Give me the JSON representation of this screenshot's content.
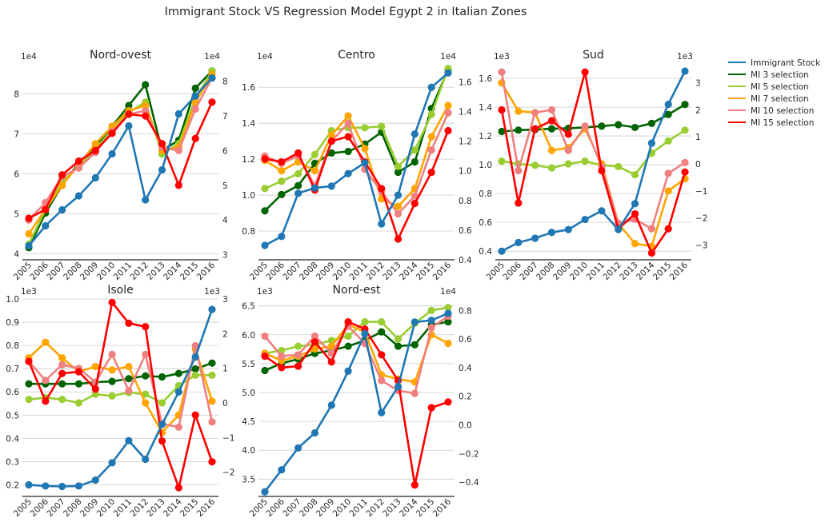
{
  "title": "Immigrant Stock VS Regression Model Egypt 2 in Italian Zones",
  "years": [
    "2005",
    "2006",
    "2007",
    "2008",
    "2009",
    "2010",
    "2011",
    "2012",
    "2013",
    "2014",
    "2015",
    "2016"
  ],
  "legend": [
    {
      "name": "Immigrant Stock",
      "color": "#1f77b4"
    },
    {
      "name": "MI 3 selection",
      "color": "#006400"
    },
    {
      "name": "MI 5 selection",
      "color": "#9acd32"
    },
    {
      "name": "MI 7 selection",
      "color": "#ffa500"
    },
    {
      "name": "MI 10 selection",
      "color": "#f08080"
    },
    {
      "name": "MI 15 selection",
      "color": "#ff0000"
    }
  ],
  "chart_data": [
    {
      "type": "line",
      "title": "Nord-ovest",
      "left_exponent": "1e4",
      "right_exponent": "1e4",
      "left_ylim": [
        3.85,
        8.75
      ],
      "left_ticks": [
        4,
        5,
        6,
        7,
        8
      ],
      "right_ylim": [
        2.85,
        8.5
      ],
      "right_ticks": [
        3,
        4,
        5,
        6,
        7,
        8
      ],
      "left_series": [
        {
          "name": "Immigrant Stock",
          "values": [
            4.2,
            4.7,
            5.1,
            5.45,
            5.9,
            6.5,
            7.2,
            5.35,
            6.1,
            7.5,
            7.95,
            8.4
          ]
        }
      ],
      "right_series": [
        {
          "name": "MI 3 selection",
          "values": [
            3.2,
            4.2,
            5.0,
            5.65,
            6.1,
            6.7,
            7.3,
            7.9,
            6.0,
            6.3,
            7.8,
            8.3
          ]
        },
        {
          "name": "MI 5 selection",
          "values": [
            3.3,
            4.3,
            5.1,
            5.55,
            6.05,
            6.6,
            7.1,
            7.4,
            5.9,
            6.2,
            7.5,
            8.3
          ]
        },
        {
          "name": "MI 7 selection",
          "values": [
            3.6,
            4.3,
            5.0,
            5.6,
            6.2,
            6.7,
            7.15,
            7.3,
            6.0,
            6.1,
            7.4,
            8.2
          ]
        },
        {
          "name": "MI 10 selection",
          "values": [
            4.0,
            4.5,
            5.25,
            5.5,
            5.95,
            6.55,
            7.05,
            7.15,
            6.1,
            6.0,
            7.2,
            8.1
          ]
        },
        {
          "name": "MI 15 selection",
          "values": [
            4.05,
            4.3,
            5.3,
            5.7,
            6.0,
            6.5,
            7.05,
            7.0,
            6.2,
            5.0,
            6.35,
            7.4
          ]
        }
      ]
    },
    {
      "type": "line",
      "title": "Centro",
      "left_exponent": "1e4",
      "right_exponent": "1e4",
      "left_ylim": [
        0.64,
        1.73
      ],
      "left_ticks": [
        0.8,
        1.0,
        1.2,
        1.4,
        1.6
      ],
      "right_ylim": [
        0.4,
        1.72
      ],
      "right_ticks": [
        0.4,
        0.6,
        0.8,
        1.0,
        1.2,
        1.4,
        1.6
      ],
      "left_series": [
        {
          "name": "Immigrant Stock",
          "values": [
            0.72,
            0.77,
            1.01,
            1.04,
            1.05,
            1.12,
            1.18,
            0.84,
            1.0,
            1.34,
            1.6,
            1.68
          ]
        }
      ],
      "right_series": [
        {
          "name": "MI 3 selection",
          "values": [
            0.73,
            0.84,
            0.9,
            1.05,
            1.12,
            1.13,
            1.18,
            1.26,
            0.99,
            1.06,
            1.42,
            1.68
          ]
        },
        {
          "name": "MI 5 selection",
          "values": [
            0.88,
            0.93,
            0.98,
            1.11,
            1.27,
            1.29,
            1.29,
            1.3,
            1.03,
            1.14,
            1.38,
            1.69
          ]
        },
        {
          "name": "MI 7 selection",
          "values": [
            1.07,
            1.0,
            1.06,
            1.0,
            1.24,
            1.37,
            1.15,
            0.81,
            0.76,
            0.88,
            1.23,
            1.44
          ]
        },
        {
          "name": "MI 10 selection",
          "values": [
            1.1,
            1.05,
            1.1,
            0.9,
            1.2,
            1.32,
            1.01,
            0.86,
            0.71,
            0.83,
            1.14,
            1.39
          ]
        },
        {
          "name": "MI 15 selection",
          "values": [
            1.08,
            1.06,
            1.12,
            0.87,
            1.2,
            1.23,
            1.06,
            0.88,
            0.54,
            0.78,
            0.99,
            1.27
          ]
        }
      ]
    },
    {
      "type": "line",
      "title": "Sud",
      "left_exponent": "1e3",
      "right_exponent": "1e3",
      "left_ylim": [
        0.34,
        1.7
      ],
      "left_ticks": [
        0.4,
        0.6,
        0.8,
        1.0,
        1.2,
        1.4,
        1.6
      ],
      "right_ylim": [
        -3.55,
        3.7
      ],
      "right_ticks": [
        -3,
        -2,
        -1,
        0,
        1,
        2,
        3
      ],
      "left_series": [
        {
          "name": "Immigrant Stock",
          "values": [
            0.4,
            0.46,
            0.49,
            0.53,
            0.55,
            0.62,
            0.68,
            0.55,
            0.73,
            1.15,
            1.42,
            1.65
          ]
        }
      ],
      "right_series": [
        {
          "name": "MI 3 selection",
          "values": [
            1.2,
            1.25,
            1.27,
            1.3,
            1.32,
            1.35,
            1.4,
            1.45,
            1.35,
            1.5,
            1.83,
            2.2
          ]
        },
        {
          "name": "MI 5 selection",
          "values": [
            0.1,
            0.0,
            -0.05,
            -0.15,
            0.0,
            0.1,
            -0.05,
            -0.1,
            -0.4,
            0.4,
            0.85,
            1.25
          ]
        },
        {
          "name": "MI 7 selection",
          "values": [
            3.0,
            1.95,
            1.9,
            0.5,
            0.6,
            1.3,
            0.0,
            -2.2,
            -2.95,
            -3.05,
            -1.0,
            -0.55
          ]
        },
        {
          "name": "MI 10 selection",
          "values": [
            3.4,
            -0.25,
            1.9,
            2.0,
            0.5,
            1.4,
            -0.1,
            -2.2,
            -2.05,
            -2.4,
            -0.35,
            0.05
          ]
        },
        {
          "name": "MI 15 selection",
          "values": [
            2.0,
            -1.45,
            1.3,
            1.6,
            1.1,
            3.4,
            -0.25,
            -2.4,
            -1.85,
            -3.3,
            -2.4,
            -0.3
          ]
        }
      ]
    },
    {
      "type": "line",
      "title": "Isole",
      "left_exponent": "1e3",
      "right_exponent": "1e3",
      "left_ylim": [
        0.15,
        1.0
      ],
      "left_ticks": [
        0.2,
        0.3,
        0.4,
        0.5,
        0.6,
        0.7,
        0.8,
        0.9,
        1.0
      ],
      "right_ylim": [
        -2.7,
        3.0
      ],
      "right_ticks": [
        -2,
        -1,
        0,
        1,
        2,
        3
      ],
      "left_series": [
        {
          "name": "Immigrant Stock",
          "values": [
            0.2,
            0.195,
            0.193,
            0.195,
            0.22,
            0.295,
            0.39,
            0.31,
            0.46,
            0.6,
            0.75,
            0.955
          ]
        }
      ],
      "right_series": [
        {
          "name": "MI 3 selection",
          "values": [
            0.55,
            0.55,
            0.55,
            0.55,
            0.6,
            0.62,
            0.7,
            0.78,
            0.75,
            0.85,
            0.98,
            1.15
          ]
        },
        {
          "name": "MI 5 selection",
          "values": [
            0.1,
            0.15,
            0.1,
            0.0,
            0.25,
            0.2,
            0.3,
            0.25,
            0.0,
            0.5,
            0.8,
            0.8
          ]
        },
        {
          "name": "MI 7 selection",
          "values": [
            1.3,
            1.75,
            1.3,
            0.9,
            1.05,
            0.95,
            1.05,
            0.0,
            -0.85,
            -0.35,
            1.55,
            0.05
          ]
        },
        {
          "name": "MI 10 selection",
          "values": [
            1.2,
            0.65,
            1.1,
            1.0,
            0.6,
            1.4,
            0.35,
            1.4,
            -0.6,
            -0.7,
            1.65,
            -0.55
          ]
        },
        {
          "name": "MI 15 selection",
          "values": [
            1.2,
            0.05,
            0.85,
            0.9,
            0.4,
            2.9,
            2.3,
            2.2,
            -1.1,
            -2.45,
            -0.35,
            -1.7
          ]
        }
      ]
    },
    {
      "type": "line",
      "title": "Nord-est",
      "left_exponent": "1e3",
      "right_exponent": "1e4",
      "left_ylim": [
        3.2,
        6.62
      ],
      "left_ticks": [
        3.5,
        4.0,
        4.5,
        5.0,
        5.5,
        6.0,
        6.5
      ],
      "right_ylim": [
        -0.5,
        0.88
      ],
      "right_ticks": [
        -0.4,
        -0.2,
        0.0,
        0.2,
        0.4,
        0.6,
        0.8
      ],
      "left_series": [
        {
          "name": "Immigrant Stock",
          "values": [
            3.28,
            3.66,
            4.04,
            4.3,
            4.78,
            5.37,
            6.02,
            4.65,
            5.1,
            6.22,
            6.25,
            6.37
          ]
        }
      ],
      "right_series": [
        {
          "name": "MI 3 selection",
          "values": [
            0.38,
            0.43,
            0.46,
            0.5,
            0.52,
            0.55,
            0.59,
            0.65,
            0.55,
            0.56,
            0.7,
            0.72
          ]
        },
        {
          "name": "MI 5 selection",
          "values": [
            0.5,
            0.52,
            0.55,
            0.56,
            0.59,
            0.62,
            0.72,
            0.72,
            0.6,
            0.71,
            0.8,
            0.82
          ]
        },
        {
          "name": "MI 7 selection",
          "values": [
            0.5,
            0.45,
            0.48,
            0.53,
            0.55,
            0.7,
            0.65,
            0.35,
            0.32,
            0.3,
            0.63,
            0.57
          ]
        },
        {
          "name": "MI 10 selection",
          "values": [
            0.62,
            0.48,
            0.49,
            0.62,
            0.5,
            0.69,
            0.57,
            0.31,
            0.24,
            0.22,
            0.68,
            0.76
          ]
        },
        {
          "name": "MI 15 selection",
          "values": [
            0.48,
            0.4,
            0.41,
            0.58,
            0.44,
            0.72,
            0.67,
            0.49,
            0.31,
            -0.42,
            0.12,
            0.16
          ]
        }
      ]
    }
  ]
}
